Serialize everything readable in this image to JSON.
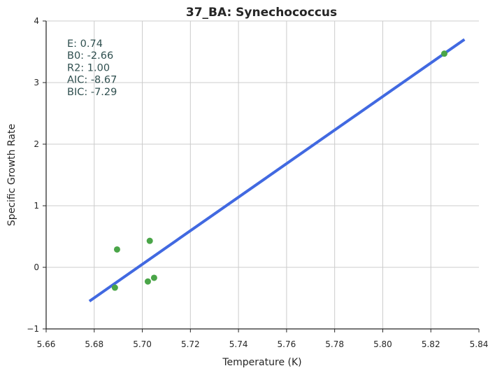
{
  "chart_data": {
    "type": "scatter",
    "title": "37_BA: Synechococcus",
    "xlabel": "Temperature (K)",
    "ylabel": "Specific Growth Rate",
    "xlim": [
      5.66,
      5.84
    ],
    "ylim": [
      -1,
      4
    ],
    "grid": true,
    "x_ticks": [
      "5.66",
      "5.68",
      "5.70",
      "5.72",
      "5.74",
      "5.76",
      "5.78",
      "5.80",
      "5.82",
      "5.84"
    ],
    "y_ticks": [
      "−1",
      "0",
      "1",
      "2",
      "3",
      "4"
    ],
    "x_tick_values": [
      5.66,
      5.68,
      5.7,
      5.72,
      5.74,
      5.76,
      5.78,
      5.8,
      5.82,
      5.84
    ],
    "y_tick_values": [
      -1,
      0,
      1,
      2,
      3,
      4
    ],
    "points": [
      {
        "x": 5.6886,
        "y": -0.33
      },
      {
        "x": 5.6895,
        "y": 0.29
      },
      {
        "x": 5.7023,
        "y": -0.23
      },
      {
        "x": 5.7031,
        "y": 0.43
      },
      {
        "x": 5.7049,
        "y": -0.17
      },
      {
        "x": 5.8256,
        "y": 3.47
      }
    ],
    "fit_line": {
      "x": [
        5.678,
        5.834
      ],
      "y": [
        -0.55,
        3.7
      ]
    },
    "stats": [
      "E:  0.74",
      "B0:  -2.66",
      "R2:  1.00",
      "AIC: -8.67",
      "BIC: -7.29"
    ],
    "colors": {
      "points": "#4aa548",
      "line": "#4169e1",
      "stats_text": "#2f4f4f"
    }
  }
}
